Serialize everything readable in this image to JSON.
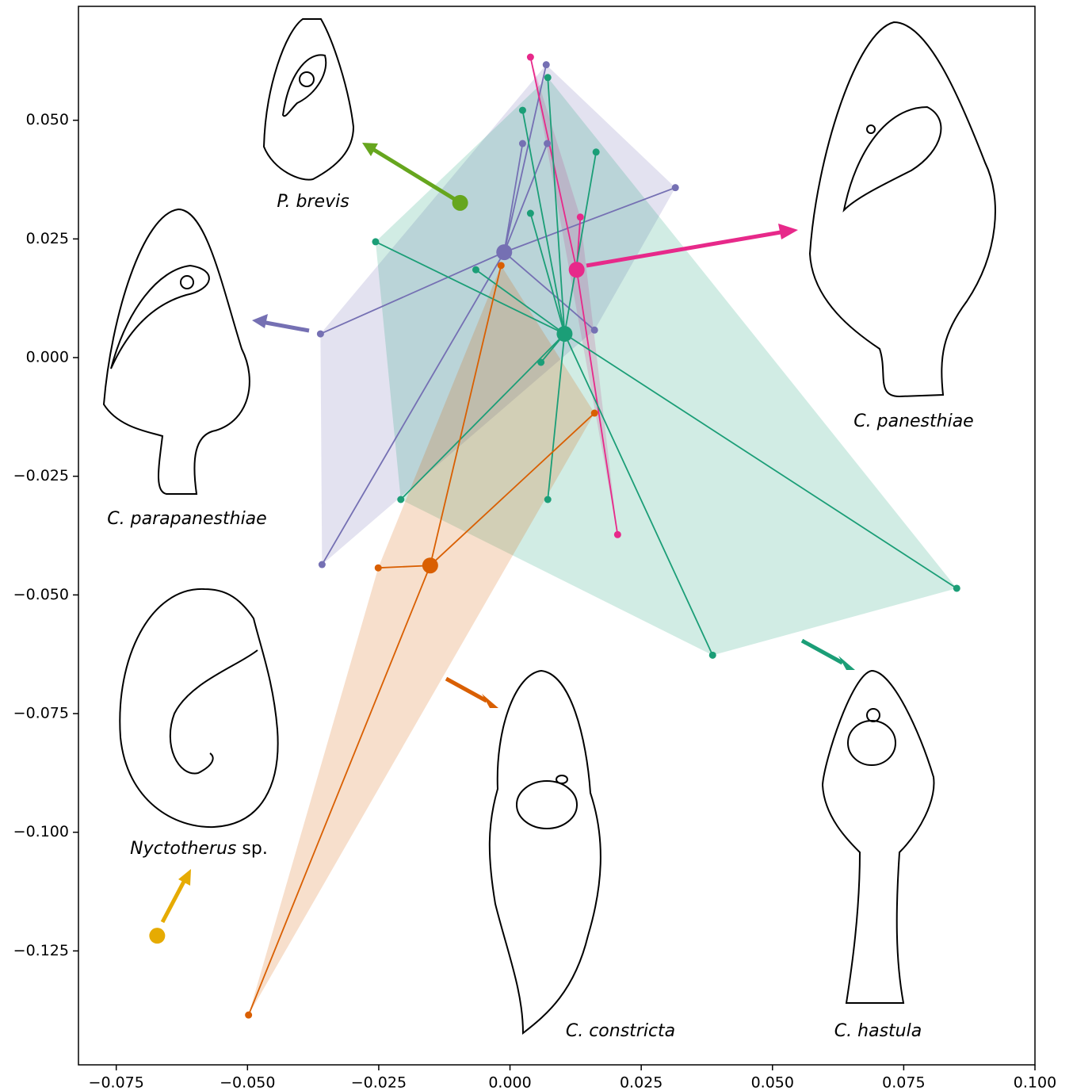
{
  "chart_data": {
    "type": "scatter",
    "xlim": [
      -0.0822,
      0.1
    ],
    "ylim": [
      -0.149,
      0.074
    ],
    "xticks": [
      {
        "value": -0.075,
        "label": "−0.075"
      },
      {
        "value": -0.05,
        "label": "−0.050"
      },
      {
        "value": -0.025,
        "label": "−0.025"
      },
      {
        "value": 0,
        "label": "0.000"
      },
      {
        "value": 0.025,
        "label": "0.025"
      },
      {
        "value": 0.05,
        "label": "0.050"
      },
      {
        "value": 0.075,
        "label": "0.075"
      },
      {
        "value": 0.1,
        "label": "0.100"
      }
    ],
    "yticks": [
      {
        "value": 0.05,
        "label": "0.050"
      },
      {
        "value": 0.025,
        "label": "0.025"
      },
      {
        "value": 0,
        "label": "0.000"
      },
      {
        "value": -0.025,
        "label": "−0.025"
      },
      {
        "value": -0.05,
        "label": "−0.050"
      },
      {
        "value": -0.075,
        "label": "−0.075"
      },
      {
        "value": -0.1,
        "label": "−0.100"
      },
      {
        "value": -0.125,
        "label": "−0.125"
      }
    ],
    "series": [
      {
        "genus": "P.",
        "name": "brevis",
        "color": "#66a61e",
        "centroid": {
          "x": -0.0095,
          "y": 0.0326
        },
        "points": {
          "x": [],
          "y": []
        }
      },
      {
        "genus": "C.",
        "name": "parapanesthiae",
        "color": "#7570b3",
        "centroid": {
          "x": -0.0011,
          "y": 0.0222
        },
        "points": {
          "x": [
            0.0069,
            0.0024,
            0.0071,
            0.0315,
            -0.0361,
            0.0161,
            -0.0358
          ],
          "y": [
            0.0617,
            0.0451,
            0.0451,
            0.0358,
            0.005,
            0.0058,
            -0.0436
          ]
        }
      },
      {
        "genus": "C.",
        "name": "panesthiae",
        "color": "#e7298a",
        "centroid": {
          "x": 0.0127,
          "y": 0.0185
        },
        "points": {
          "x": [
            0.0039,
            0.0134,
            0.0205
          ],
          "y": [
            0.0633,
            0.0296,
            -0.0373
          ]
        }
      },
      {
        "genus": "C.",
        "name": "hastula",
        "color": "#1b9e77",
        "centroid": {
          "x": 0.0104,
          "y": 0.005
        },
        "points": {
          "x": [
            0.0072,
            0.0024,
            0.0164,
            0.0039,
            -0.0256,
            -0.0065,
            0.0059,
            -0.0208,
            0.0072,
            0.0386,
            0.0851
          ],
          "y": [
            0.059,
            0.0521,
            0.0433,
            0.0304,
            0.0244,
            0.0185,
            -0.001,
            -0.0299,
            -0.0299,
            -0.0627,
            -0.0486
          ]
        }
      },
      {
        "genus": "C.",
        "name": "constricta",
        "color": "#d95f02",
        "centroid": {
          "x": -0.0152,
          "y": -0.0438
        },
        "points": {
          "x": [
            -0.0017,
            0.0161,
            -0.0251,
            -0.0498
          ],
          "y": [
            0.0194,
            -0.0117,
            -0.0443,
            -0.1385
          ]
        }
      },
      {
        "genus": "Nyctotherus",
        "name": "sp.",
        "color": "#e6ab02",
        "centroid": {
          "x": -0.0672,
          "y": -0.1218
        },
        "points": {
          "x": [],
          "y": []
        }
      }
    ]
  }
}
